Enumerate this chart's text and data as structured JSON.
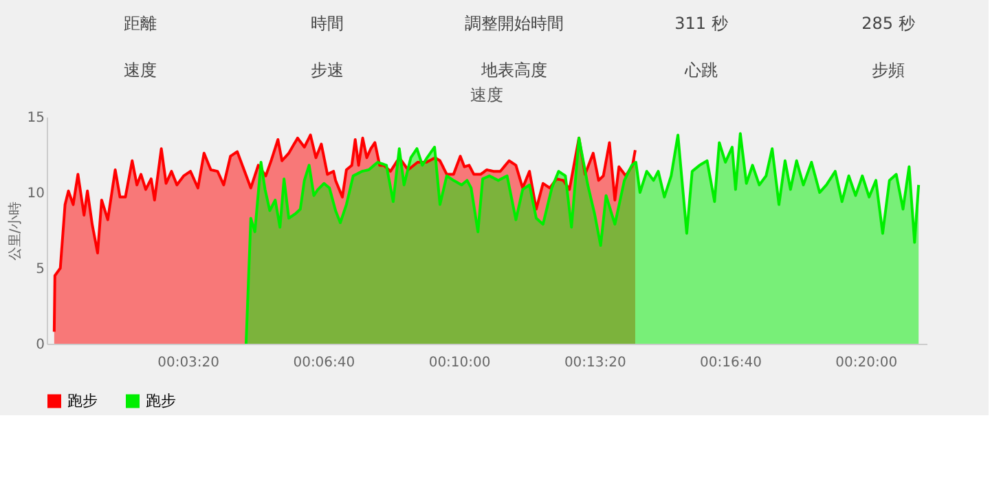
{
  "chart_data": {
    "type": "area",
    "title": "速度",
    "ylabel": "公里/小時",
    "annotations": [
      "距離",
      "時間",
      "調整開始時間",
      "311 秒",
      "285 秒",
      "速度",
      "步速",
      "地表高度",
      "心跳",
      "步頻"
    ],
    "xlim": [
      -8,
      1290
    ],
    "xticks": [
      {
        "value": 200,
        "label": "00:03:20"
      },
      {
        "value": 400,
        "label": "00:06:40"
      },
      {
        "value": 600,
        "label": "00:10:00"
      },
      {
        "value": 800,
        "label": "00:13:20"
      },
      {
        "value": 1000,
        "label": "00:16:40"
      },
      {
        "value": 1200,
        "label": "00:20:00"
      }
    ],
    "ylim": [
      0,
      15
    ],
    "yticks": [
      0,
      5,
      10,
      15
    ],
    "grid": false,
    "legend": "bottom",
    "line_style": "solid",
    "series": [
      {
        "name": "跑步",
        "color": "#ff0000",
        "x": [
          3,
          4,
          12,
          19,
          24,
          31,
          38,
          47,
          52,
          59,
          67,
          73,
          82,
          93,
          100,
          108,
          118,
          125,
          131,
          138,
          146,
          151,
          161,
          168,
          176,
          184,
          194,
          204,
          215,
          224,
          234,
          244,
          253,
          263,
          273,
          283,
          293,
          304,
          315,
          323,
          333,
          339,
          349,
          362,
          372,
          381,
          389,
          397,
          406,
          415,
          418,
          428,
          434,
          442,
          447,
          452,
          458,
          464,
          470,
          476,
          483,
          489,
          499,
          512,
          525,
          539,
          552,
          565,
          572,
          582,
          592,
          602,
          608,
          615,
          622,
          632,
          641,
          651,
          661,
          674,
          684,
          694,
          704,
          714,
          724,
          734,
          744,
          754,
          763,
          777,
          786,
          798,
          806,
          813,
          822,
          830,
          836,
          846,
          856,
          860
        ],
        "values": [
          0.8,
          4.5,
          5.0,
          9.2,
          10.1,
          9.2,
          11.2,
          8.5,
          10.1,
          7.9,
          6.0,
          9.5,
          8.2,
          11.5,
          9.7,
          9.7,
          12.1,
          10.5,
          11.2,
          10.2,
          10.9,
          9.5,
          12.9,
          10.6,
          11.4,
          10.5,
          11.1,
          11.4,
          10.3,
          12.6,
          11.5,
          11.4,
          10.5,
          12.4,
          12.7,
          11.5,
          10.3,
          11.8,
          11.1,
          12.1,
          13.5,
          12.1,
          12.6,
          13.6,
          13.0,
          13.8,
          12.3,
          13.2,
          11.2,
          11.4,
          10.8,
          9.7,
          11.5,
          11.8,
          13.5,
          11.8,
          13.6,
          12.3,
          12.9,
          13.3,
          11.8,
          11.8,
          11.4,
          12.3,
          11.5,
          12.0,
          12.0,
          12.3,
          12.1,
          11.2,
          11.2,
          12.4,
          11.7,
          11.8,
          11.2,
          11.2,
          11.5,
          11.4,
          11.4,
          12.1,
          11.8,
          10.3,
          11.4,
          8.9,
          10.6,
          10.3,
          10.9,
          10.8,
          10.2,
          13.6,
          11.2,
          12.6,
          10.8,
          11.1,
          13.3,
          9.5,
          11.7,
          11.1,
          11.8,
          12.8
        ]
      },
      {
        "name": "跑步",
        "color": "#00ee00",
        "x": [
          286,
          293,
          299,
          308,
          314,
          321,
          329,
          336,
          342,
          349,
          359,
          366,
          372,
          379,
          386,
          392,
          401,
          409,
          418,
          425,
          434,
          444,
          457,
          467,
          480,
          493,
          503,
          512,
          519,
          529,
          538,
          546,
          553,
          564,
          572,
          582,
          592,
          604,
          612,
          618,
          628,
          635,
          645,
          658,
          671,
          684,
          694,
          704,
          714,
          724,
          737,
          747,
          757,
          766,
          777,
          790,
          800,
          809,
          817,
          830,
          844,
          855,
          861,
          867,
          877,
          887,
          894,
          903,
          913,
          923,
          936,
          944,
          955,
          966,
          977,
          984,
          993,
          1003,
          1008,
          1015,
          1024,
          1033,
          1043,
          1053,
          1062,
          1072,
          1081,
          1089,
          1098,
          1108,
          1120,
          1132,
          1142,
          1155,
          1165,
          1175,
          1185,
          1195,
          1205,
          1215,
          1225,
          1235,
          1245,
          1255,
          1264,
          1272,
          1278
        ],
        "values": [
          0,
          8.3,
          7.4,
          12.0,
          10.2,
          8.8,
          9.5,
          7.7,
          10.9,
          8.3,
          8.6,
          8.9,
          10.8,
          11.8,
          9.8,
          10.2,
          10.6,
          10.3,
          8.8,
          8.0,
          9.2,
          11.1,
          11.4,
          11.5,
          12.0,
          11.8,
          9.4,
          12.9,
          10.5,
          12.3,
          12.9,
          11.8,
          12.3,
          13.0,
          9.2,
          11.1,
          10.8,
          10.5,
          10.8,
          10.3,
          7.4,
          10.9,
          11.1,
          10.8,
          11.1,
          8.2,
          10.2,
          10.5,
          8.3,
          7.9,
          10.3,
          11.4,
          11.1,
          7.7,
          13.6,
          10.5,
          8.6,
          6.5,
          9.8,
          7.9,
          10.8,
          11.8,
          12.0,
          10.0,
          11.4,
          10.8,
          11.4,
          9.7,
          11.1,
          13.8,
          7.3,
          11.4,
          11.8,
          12.1,
          9.4,
          13.3,
          12.0,
          13.0,
          10.2,
          13.9,
          10.6,
          11.8,
          10.5,
          11.1,
          12.9,
          9.2,
          12.1,
          10.2,
          12.1,
          10.5,
          12.0,
          10.0,
          10.5,
          11.4,
          9.4,
          11.1,
          9.8,
          11.1,
          9.7,
          10.8,
          7.3,
          10.8,
          11.2,
          8.9,
          11.7,
          6.7,
          10.5
        ]
      }
    ]
  }
}
